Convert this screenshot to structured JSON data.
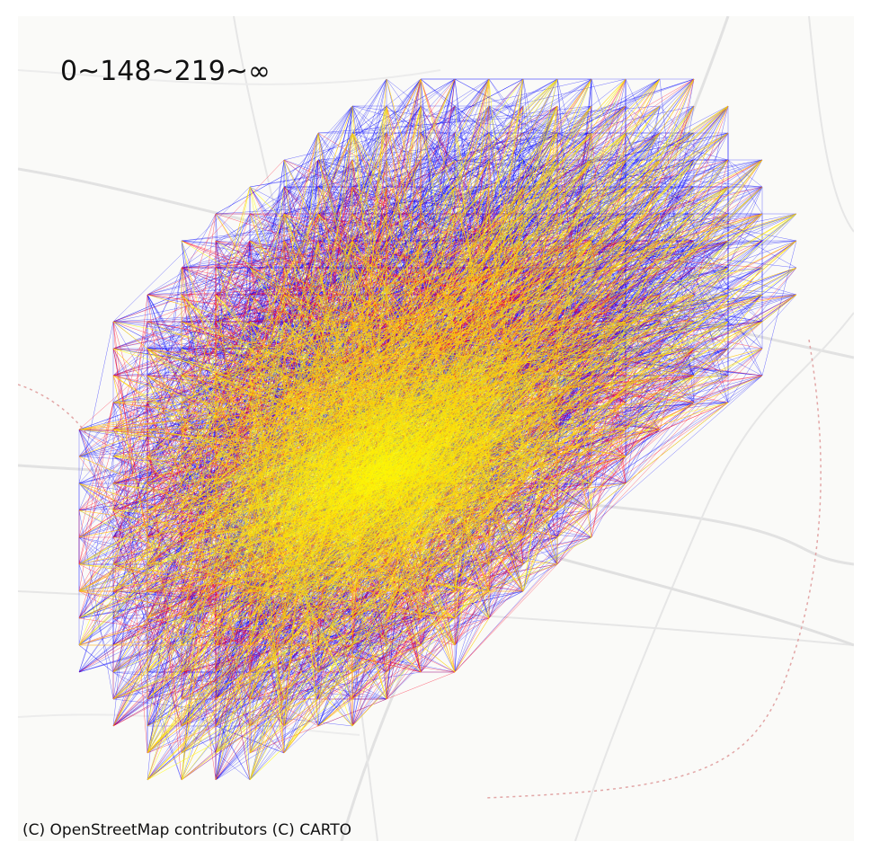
{
  "map": {
    "legend_title": "0~148~219~∞",
    "attribution": "(C) OpenStreetMap contributors (C) CARTO",
    "tier_colors": {
      "low": "#0000ff",
      "mid": "#ff0022",
      "high": "#ffff00"
    },
    "basemap_colors": {
      "land": "#fafaf8",
      "road": "#e2e2e2",
      "boundary": "#e2a6a6"
    }
  }
}
